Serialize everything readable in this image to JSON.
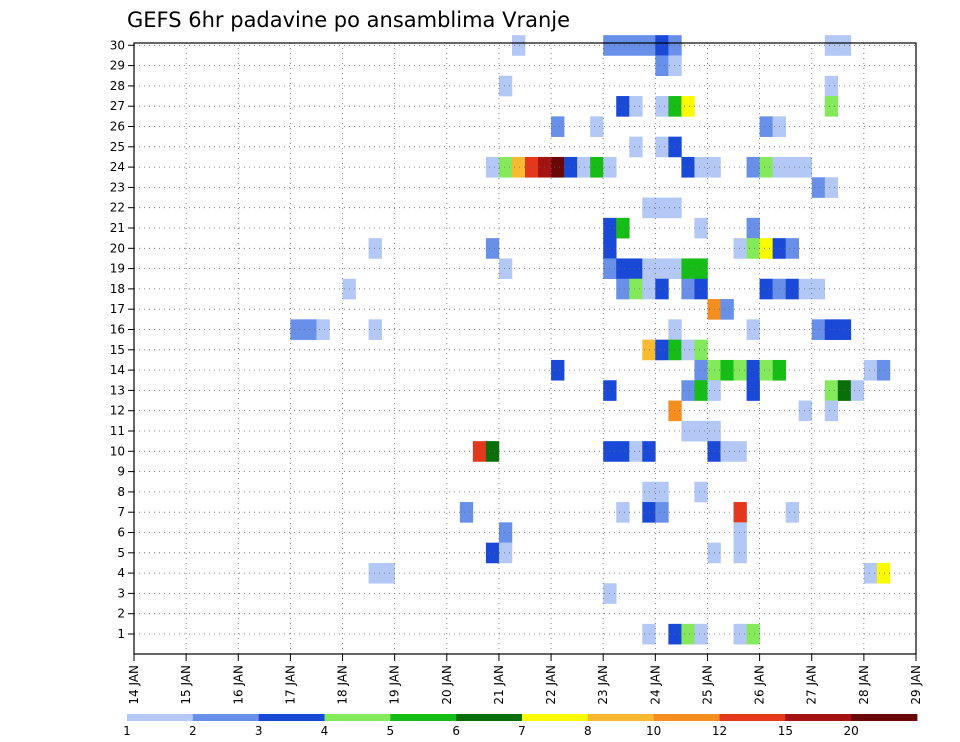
{
  "chart_data": {
    "type": "heatmap",
    "title": "GEFS 6hr padavine po ansamblima Vranje",
    "xlabel": "",
    "ylabel": "",
    "x_tick_labels": [
      "14 JAN",
      "15 JAN",
      "16 JAN",
      "17 JAN",
      "18 JAN",
      "19 JAN",
      "20 JAN",
      "21 JAN",
      "22 JAN",
      "23 JAN",
      "24 JAN",
      "25 JAN",
      "26 JAN",
      "27 JAN",
      "28 JAN",
      "29 JAN"
    ],
    "y_tick_labels": [
      "1",
      "2",
      "3",
      "4",
      "5",
      "6",
      "7",
      "8",
      "9",
      "10",
      "11",
      "12",
      "13",
      "14",
      "15",
      "16",
      "17",
      "18",
      "19",
      "20",
      "21",
      "22",
      "23",
      "24",
      "25",
      "26",
      "27",
      "28",
      "29",
      "30"
    ],
    "x_unit": "6-hour step since 14 JAN 00Z",
    "x_range": [
      0,
      60
    ],
    "y_range": [
      1,
      30
    ],
    "grid": true,
    "legend_position": "bottom",
    "colorbar": {
      "labels": [
        "1",
        "2",
        "3",
        "4",
        "5",
        "6",
        "7",
        "8",
        "10",
        "12",
        "15",
        "20"
      ],
      "colors": [
        "#b3c8f5",
        "#6890e8",
        "#1a49d8",
        "#84ea5c",
        "#17bd17",
        "#0a6e0a",
        "#fafa00",
        "#f7ba30",
        "#f48e1e",
        "#e4381c",
        "#a51212",
        "#6a0808"
      ]
    },
    "cells": [
      [
        30,
        29,
        "#b3c8f5"
      ],
      [
        30,
        36,
        "#6890e8"
      ],
      [
        30,
        37,
        "#6890e8"
      ],
      [
        30,
        38,
        "#6890e8"
      ],
      [
        30,
        39,
        "#6890e8"
      ],
      [
        30,
        40,
        "#1a49d8"
      ],
      [
        30,
        41,
        "#6890e8"
      ],
      [
        30,
        53,
        "#b3c8f5"
      ],
      [
        30,
        54,
        "#b3c8f5"
      ],
      [
        29,
        40,
        "#6890e8"
      ],
      [
        29,
        41,
        "#b3c8f5"
      ],
      [
        28,
        28,
        "#b3c8f5"
      ],
      [
        28,
        53,
        "#b3c8f5"
      ],
      [
        27,
        37,
        "#1a49d8"
      ],
      [
        27,
        38,
        "#b3c8f5"
      ],
      [
        27,
        40,
        "#b3c8f5"
      ],
      [
        27,
        41,
        "#17bd17"
      ],
      [
        27,
        42,
        "#fafa00"
      ],
      [
        27,
        53,
        "#84ea5c"
      ],
      [
        26,
        32,
        "#6890e8"
      ],
      [
        26,
        35,
        "#b3c8f5"
      ],
      [
        26,
        48,
        "#6890e8"
      ],
      [
        26,
        49,
        "#b3c8f5"
      ],
      [
        25,
        38,
        "#b3c8f5"
      ],
      [
        25,
        40,
        "#b3c8f5"
      ],
      [
        25,
        41,
        "#1a49d8"
      ],
      [
        24,
        27,
        "#b3c8f5"
      ],
      [
        24,
        28,
        "#84ea5c"
      ],
      [
        24,
        29,
        "#f7ba30"
      ],
      [
        24,
        30,
        "#e4381c"
      ],
      [
        24,
        31,
        "#a51212"
      ],
      [
        24,
        32,
        "#6a0808"
      ],
      [
        24,
        33,
        "#1a49d8"
      ],
      [
        24,
        34,
        "#b3c8f5"
      ],
      [
        24,
        35,
        "#17bd17"
      ],
      [
        24,
        36,
        "#b3c8f5"
      ],
      [
        24,
        42,
        "#1a49d8"
      ],
      [
        24,
        43,
        "#b3c8f5"
      ],
      [
        24,
        44,
        "#b3c8f5"
      ],
      [
        24,
        47,
        "#6890e8"
      ],
      [
        24,
        48,
        "#84ea5c"
      ],
      [
        24,
        49,
        "#b3c8f5"
      ],
      [
        24,
        50,
        "#b3c8f5"
      ],
      [
        24,
        51,
        "#b3c8f5"
      ],
      [
        23,
        52,
        "#6890e8"
      ],
      [
        23,
        53,
        "#b3c8f5"
      ],
      [
        22,
        39,
        "#b3c8f5"
      ],
      [
        22,
        40,
        "#b3c8f5"
      ],
      [
        22,
        41,
        "#b3c8f5"
      ],
      [
        21,
        36,
        "#1a49d8"
      ],
      [
        21,
        37,
        "#17bd17"
      ],
      [
        21,
        43,
        "#b3c8f5"
      ],
      [
        21,
        47,
        "#6890e8"
      ],
      [
        20,
        18,
        "#b3c8f5"
      ],
      [
        20,
        27,
        "#6890e8"
      ],
      [
        20,
        36,
        "#1a49d8"
      ],
      [
        20,
        46,
        "#b3c8f5"
      ],
      [
        20,
        47,
        "#84ea5c"
      ],
      [
        20,
        48,
        "#fafa00"
      ],
      [
        20,
        49,
        "#1a49d8"
      ],
      [
        20,
        50,
        "#6890e8"
      ],
      [
        19,
        28,
        "#b3c8f5"
      ],
      [
        19,
        36,
        "#6890e8"
      ],
      [
        19,
        37,
        "#1a49d8"
      ],
      [
        19,
        38,
        "#1a49d8"
      ],
      [
        19,
        39,
        "#b3c8f5"
      ],
      [
        19,
        40,
        "#b3c8f5"
      ],
      [
        19,
        41,
        "#b3c8f5"
      ],
      [
        19,
        42,
        "#17bd17"
      ],
      [
        19,
        43,
        "#17bd17"
      ],
      [
        18,
        16,
        "#b3c8f5"
      ],
      [
        18,
        37,
        "#6890e8"
      ],
      [
        18,
        38,
        "#84ea5c"
      ],
      [
        18,
        39,
        "#b3c8f5"
      ],
      [
        18,
        40,
        "#1a49d8"
      ],
      [
        18,
        42,
        "#6890e8"
      ],
      [
        18,
        43,
        "#1a49d8"
      ],
      [
        18,
        48,
        "#1a49d8"
      ],
      [
        18,
        49,
        "#6890e8"
      ],
      [
        18,
        50,
        "#1a49d8"
      ],
      [
        18,
        51,
        "#b3c8f5"
      ],
      [
        18,
        52,
        "#b3c8f5"
      ],
      [
        17,
        44,
        "#f48e1e"
      ],
      [
        17,
        45,
        "#6890e8"
      ],
      [
        16,
        12,
        "#6890e8"
      ],
      [
        16,
        13,
        "#6890e8"
      ],
      [
        16,
        14,
        "#b3c8f5"
      ],
      [
        16,
        18,
        "#b3c8f5"
      ],
      [
        16,
        41,
        "#b3c8f5"
      ],
      [
        16,
        47,
        "#b3c8f5"
      ],
      [
        16,
        52,
        "#6890e8"
      ],
      [
        16,
        53,
        "#1a49d8"
      ],
      [
        16,
        54,
        "#1a49d8"
      ],
      [
        15,
        39,
        "#f7ba30"
      ],
      [
        15,
        40,
        "#1a49d8"
      ],
      [
        15,
        41,
        "#17bd17"
      ],
      [
        15,
        42,
        "#b3c8f5"
      ],
      [
        15,
        43,
        "#84ea5c"
      ],
      [
        14,
        32,
        "#1a49d8"
      ],
      [
        14,
        43,
        "#6890e8"
      ],
      [
        14,
        44,
        "#84ea5c"
      ],
      [
        14,
        45,
        "#17bd17"
      ],
      [
        14,
        46,
        "#84ea5c"
      ],
      [
        14,
        47,
        "#1a49d8"
      ],
      [
        14,
        48,
        "#84ea5c"
      ],
      [
        14,
        49,
        "#17bd17"
      ],
      [
        14,
        56,
        "#b3c8f5"
      ],
      [
        14,
        57,
        "#6890e8"
      ],
      [
        13,
        36,
        "#1a49d8"
      ],
      [
        13,
        42,
        "#6890e8"
      ],
      [
        13,
        43,
        "#17bd17"
      ],
      [
        13,
        44,
        "#b3c8f5"
      ],
      [
        13,
        47,
        "#1a49d8"
      ],
      [
        13,
        53,
        "#84ea5c"
      ],
      [
        13,
        54,
        "#0a6e0a"
      ],
      [
        13,
        55,
        "#b3c8f5"
      ],
      [
        12,
        41,
        "#f48e1e"
      ],
      [
        12,
        51,
        "#b3c8f5"
      ],
      [
        12,
        53,
        "#b3c8f5"
      ],
      [
        11,
        42,
        "#b3c8f5"
      ],
      [
        11,
        43,
        "#b3c8f5"
      ],
      [
        11,
        44,
        "#b3c8f5"
      ],
      [
        10,
        26,
        "#e4381c"
      ],
      [
        10,
        27,
        "#0a6e0a"
      ],
      [
        10,
        36,
        "#1a49d8"
      ],
      [
        10,
        37,
        "#1a49d8"
      ],
      [
        10,
        38,
        "#b3c8f5"
      ],
      [
        10,
        39,
        "#1a49d8"
      ],
      [
        10,
        44,
        "#1a49d8"
      ],
      [
        10,
        45,
        "#b3c8f5"
      ],
      [
        10,
        46,
        "#b3c8f5"
      ],
      [
        8,
        39,
        "#b3c8f5"
      ],
      [
        8,
        40,
        "#b3c8f5"
      ],
      [
        8,
        43,
        "#b3c8f5"
      ],
      [
        7,
        25,
        "#6890e8"
      ],
      [
        7,
        37,
        "#b3c8f5"
      ],
      [
        7,
        39,
        "#1a49d8"
      ],
      [
        7,
        40,
        "#6890e8"
      ],
      [
        7,
        46,
        "#e4381c"
      ],
      [
        7,
        50,
        "#b3c8f5"
      ],
      [
        6,
        28,
        "#6890e8"
      ],
      [
        6,
        46,
        "#b3c8f5"
      ],
      [
        5,
        27,
        "#1a49d8"
      ],
      [
        5,
        28,
        "#b3c8f5"
      ],
      [
        5,
        44,
        "#b3c8f5"
      ],
      [
        5,
        46,
        "#b3c8f5"
      ],
      [
        4,
        18,
        "#b3c8f5"
      ],
      [
        4,
        19,
        "#b3c8f5"
      ],
      [
        4,
        56,
        "#b3c8f5"
      ],
      [
        4,
        57,
        "#fafa00"
      ],
      [
        3,
        36,
        "#b3c8f5"
      ],
      [
        1,
        39,
        "#b3c8f5"
      ],
      [
        1,
        41,
        "#1a49d8"
      ],
      [
        1,
        42,
        "#84ea5c"
      ],
      [
        1,
        43,
        "#b3c8f5"
      ],
      [
        1,
        46,
        "#b3c8f5"
      ],
      [
        1,
        47,
        "#84ea5c"
      ]
    ]
  }
}
